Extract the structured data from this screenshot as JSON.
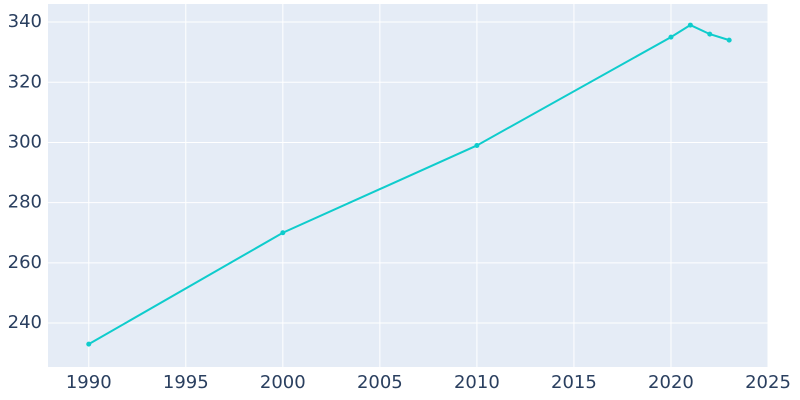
{
  "chart_data": {
    "type": "line",
    "x": [
      1990,
      2000,
      2010,
      2020,
      2021,
      2022,
      2023
    ],
    "series": [
      {
        "color": "#0fcccc",
        "values": [
          233,
          270,
          299,
          335,
          339,
          336,
          334
        ]
      }
    ],
    "xlim": [
      1987.9,
      2025
    ],
    "xticks": [
      1990,
      1995,
      2000,
      2005,
      2010,
      2015,
      2020,
      2025
    ],
    "ylim": [
      225.4,
      346
    ],
    "yticks": [
      240,
      260,
      280,
      300,
      320,
      340
    ],
    "grid": true,
    "background": "#e5ecf6"
  }
}
